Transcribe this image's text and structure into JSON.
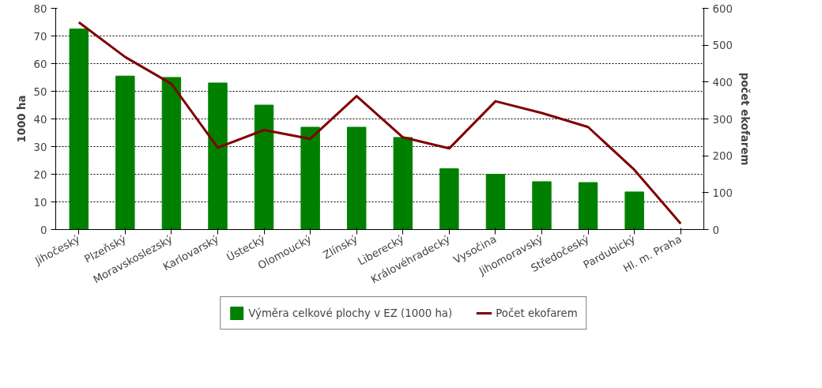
{
  "chart_data": {
    "type": "bar",
    "ylabel": "1000 ha",
    "y2label": "počet ekofarem",
    "categories": [
      "Jihočeský",
      "Plzeňský",
      "Moravskoslezský",
      "Karlovarský",
      "Ústecký",
      "Olomoucký",
      "Zlínský",
      "Liberecký",
      "Královéhradecký",
      "Vysočina",
      "Jihomoravský",
      "Středočeský",
      "Pardubický",
      "Hl. m. Praha"
    ],
    "series": [
      {
        "name": "Výměra celkové plochy v EZ (1000 ha)",
        "color": "#008000",
        "values": [
          72.5,
          55.5,
          55,
          53,
          45,
          37,
          37,
          33.3,
          22,
          20,
          17.3,
          17,
          13.6,
          null
        ]
      },
      {
        "name": "Počet ekofarem",
        "type": "line",
        "axis": "y2",
        "color": "#800000",
        "values": [
          562,
          468,
          395,
          222,
          270,
          246,
          362,
          250,
          220,
          348,
          316,
          278,
          162,
          16
        ]
      }
    ],
    "ylim": [
      0,
      80
    ],
    "yticks": [
      0,
      10,
      20,
      30,
      40,
      50,
      60,
      70,
      80
    ],
    "y2lim": [
      0,
      600
    ],
    "y2ticks": [
      0,
      100,
      200,
      300,
      400,
      500,
      600
    ],
    "grid": "y",
    "legend": "bottom"
  }
}
